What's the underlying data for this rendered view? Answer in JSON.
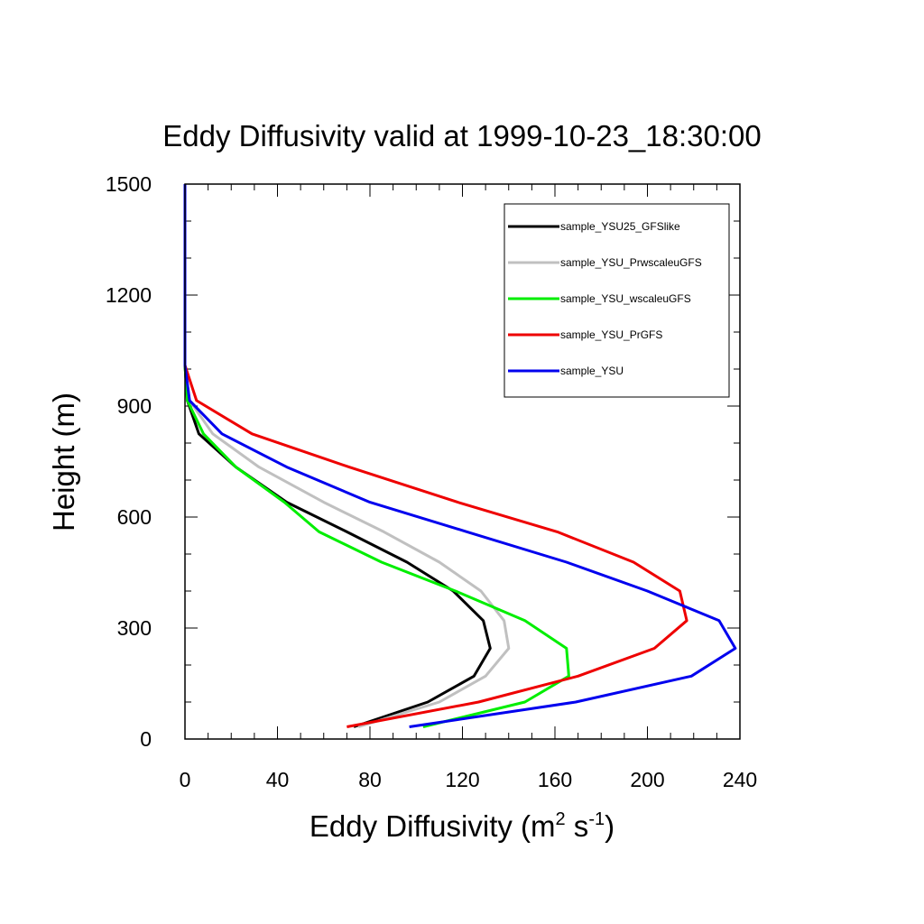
{
  "chart_data": {
    "type": "line",
    "title": "Eddy Diffusivity valid at 1999-10-23_18:30:00",
    "xlabel": {
      "base": "Eddy Diffusivity (m",
      "sup1": "2",
      "mid": " s",
      "sup2": "-1",
      "end": ")"
    },
    "ylabel": "Height (m)",
    "xlim": [
      0,
      240
    ],
    "ylim": [
      0,
      1500
    ],
    "xticks": [
      0,
      40,
      80,
      120,
      160,
      200,
      240
    ],
    "xtick_labels": [
      "0",
      "40",
      "80",
      "120",
      "160",
      "200",
      "240"
    ],
    "yticks": [
      0,
      300,
      600,
      900,
      1200,
      1500
    ],
    "ytick_labels": [
      "0",
      "300",
      "600",
      "900",
      "1200",
      "1500"
    ],
    "legend_position": "top-right",
    "series": [
      {
        "name": "sample_YSU25_GFSlike",
        "color": "#000000",
        "points": [
          [
            73,
            33
          ],
          [
            105,
            100
          ],
          [
            125,
            170
          ],
          [
            132,
            245
          ],
          [
            129,
            320
          ],
          [
            116,
            400
          ],
          [
            96,
            478
          ],
          [
            70,
            560
          ],
          [
            44,
            640
          ],
          [
            22,
            735
          ],
          [
            6,
            825
          ],
          [
            1,
            915
          ],
          [
            0,
            1010
          ],
          [
            0,
            1100
          ],
          [
            0,
            1200
          ],
          [
            0,
            1300
          ],
          [
            0,
            1400
          ],
          [
            0,
            1500
          ]
        ]
      },
      {
        "name": "sample_YSU_PrwscaleuGFS",
        "color": "#c0c0c0",
        "points": [
          [
            75,
            33
          ],
          [
            110,
            100
          ],
          [
            130,
            170
          ],
          [
            140,
            245
          ],
          [
            138,
            320
          ],
          [
            128,
            400
          ],
          [
            110,
            478
          ],
          [
            86,
            560
          ],
          [
            60,
            640
          ],
          [
            32,
            735
          ],
          [
            12,
            825
          ],
          [
            2,
            915
          ],
          [
            0,
            1010
          ],
          [
            0,
            1100
          ],
          [
            0,
            1200
          ],
          [
            0,
            1300
          ],
          [
            0,
            1400
          ],
          [
            0,
            1500
          ]
        ]
      },
      {
        "name": "sample_YSU_wscaleuGFS",
        "color": "#00ee00",
        "points": [
          [
            103,
            33
          ],
          [
            147,
            100
          ],
          [
            166,
            170
          ],
          [
            165,
            245
          ],
          [
            147,
            320
          ],
          [
            117,
            400
          ],
          [
            85,
            478
          ],
          [
            58,
            560
          ],
          [
            43,
            640
          ],
          [
            22,
            735
          ],
          [
            8,
            825
          ],
          [
            1,
            915
          ],
          [
            0,
            1010
          ],
          [
            0,
            1100
          ],
          [
            0,
            1200
          ],
          [
            0,
            1300
          ],
          [
            0,
            1400
          ],
          [
            0,
            1500
          ]
        ]
      },
      {
        "name": "sample_YSU_PrGFS",
        "color": "#ee0000",
        "points": [
          [
            70,
            33
          ],
          [
            127,
            100
          ],
          [
            170,
            170
          ],
          [
            203,
            245
          ],
          [
            217,
            320
          ],
          [
            214,
            400
          ],
          [
            194,
            478
          ],
          [
            161,
            560
          ],
          [
            118,
            640
          ],
          [
            71,
            735
          ],
          [
            29,
            825
          ],
          [
            5,
            915
          ],
          [
            0,
            1010
          ],
          [
            0,
            1100
          ],
          [
            0,
            1200
          ],
          [
            0,
            1300
          ],
          [
            0,
            1400
          ],
          [
            0,
            1500
          ]
        ]
      },
      {
        "name": "sample_YSU",
        "color": "#0000ee",
        "points": [
          [
            97,
            33
          ],
          [
            169,
            100
          ],
          [
            219,
            170
          ],
          [
            238,
            245
          ],
          [
            231,
            320
          ],
          [
            200,
            400
          ],
          [
            165,
            478
          ],
          [
            122,
            560
          ],
          [
            80,
            640
          ],
          [
            44,
            735
          ],
          [
            16,
            825
          ],
          [
            2,
            915
          ],
          [
            0,
            1010
          ],
          [
            0,
            1100
          ],
          [
            0,
            1200
          ],
          [
            0,
            1300
          ],
          [
            0,
            1400
          ],
          [
            0,
            1500
          ]
        ]
      }
    ]
  }
}
